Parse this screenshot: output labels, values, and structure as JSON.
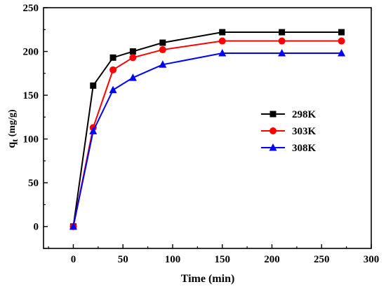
{
  "chart_data": {
    "type": "line",
    "xlabel": "Time (min)",
    "ylabel_main": "q",
    "ylabel_sub": "t",
    "ylabel_unit": " (mg/g)",
    "xlim": [
      -30,
      300
    ],
    "ylim": [
      -25,
      250
    ],
    "x_ticks": [
      0,
      50,
      100,
      150,
      200,
      250,
      300
    ],
    "y_ticks": [
      0,
      50,
      100,
      150,
      200,
      250
    ],
    "legend_position": "middle-right",
    "grid": false,
    "x": [
      0,
      20,
      40,
      60,
      90,
      150,
      210,
      270
    ],
    "series": [
      {
        "name": "298K",
        "color": "#000000",
        "marker": "square",
        "values": [
          0,
          161,
          193,
          200,
          210,
          222,
          222,
          222
        ]
      },
      {
        "name": "303K",
        "color": "#ff0000",
        "marker": "circle",
        "values": [
          0,
          113,
          179,
          193,
          202,
          212,
          212,
          212
        ]
      },
      {
        "name": "308K",
        "color": "#0000ff",
        "marker": "triangle",
        "values": [
          0,
          109,
          156,
          170,
          185,
          198,
          198,
          198
        ]
      }
    ]
  }
}
